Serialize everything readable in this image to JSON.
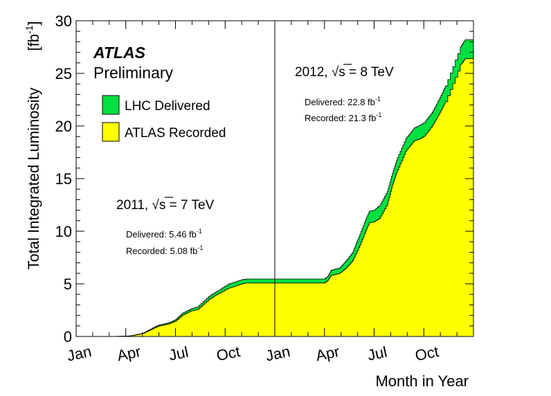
{
  "chart_data": {
    "type": "area",
    "xlabel": "Month in Year",
    "ylabel": "Total Integrated Luminosity",
    "ylabel_unit": "[fb",
    "ylabel_unit_sup": "-1",
    "ylabel_unit_close": "]",
    "ylim": [
      0,
      30
    ],
    "xlim": [
      0,
      24
    ],
    "y_ticks": [
      0,
      5,
      10,
      15,
      20,
      25,
      30
    ],
    "x_tick_labels": [
      {
        "label": "Jan",
        "x": 0
      },
      {
        "label": "Apr",
        "x": 3
      },
      {
        "label": "Jul",
        "x": 6
      },
      {
        "label": "Oct",
        "x": 9
      },
      {
        "label": "Jan",
        "x": 12
      },
      {
        "label": "Apr",
        "x": 15
      },
      {
        "label": "Jul",
        "x": 18
      },
      {
        "label": "Oct",
        "x": 21
      }
    ],
    "x_unit": "months since Jan 2011",
    "divider_x": 12,
    "experiment": "ATLAS",
    "status": "Preliminary",
    "legend": [
      {
        "label": "LHC Delivered",
        "color": "#00e040"
      },
      {
        "label": "ATLAS Recorded",
        "color": "#ffff00"
      }
    ],
    "annotations": {
      "y2011": {
        "prefix": "2011, ",
        "sqrt": "√",
        "s": "s",
        "suffix": " = 7 TeV",
        "delivered": "Delivered: 5.46 fb",
        "recorded": "Recorded: 5.08 fb",
        "sup": "-1"
      },
      "y2012": {
        "prefix": "2012, ",
        "sqrt": "√",
        "s": "s",
        "suffix": " = 8 TeV",
        "delivered": "Delivered: 22.8 fb",
        "recorded": "Recorded: 21.3 fb",
        "sup": "-1"
      }
    },
    "series": [
      {
        "name": "LHC Delivered",
        "color": "#00e040",
        "x": [
          0,
          1.5,
          2.5,
          3.2,
          4.0,
          4.6,
          5.0,
          5.6,
          6.0,
          6.4,
          6.9,
          7.3,
          8.0,
          8.5,
          9.2,
          10.0,
          10.3,
          12.0,
          15.0,
          15.2,
          15.4,
          15.9,
          16.3,
          16.7,
          17.0,
          17.4,
          17.7,
          18.0,
          18.3,
          18.8,
          19.1,
          19.4,
          19.9,
          20.4,
          20.8,
          21.0,
          21.5,
          21.9,
          22.3,
          23.2,
          23.5,
          24.0
        ],
        "values": [
          0,
          0,
          0.01,
          0.05,
          0.3,
          0.8,
          1.1,
          1.3,
          1.6,
          2.2,
          2.6,
          2.8,
          3.8,
          4.3,
          5.0,
          5.4,
          5.46,
          5.46,
          5.46,
          5.7,
          6.3,
          6.5,
          7.2,
          8.0,
          9.2,
          10.8,
          11.9,
          12.0,
          12.4,
          13.8,
          15.5,
          17.0,
          18.8,
          19.8,
          20.1,
          20.3,
          21.3,
          22.5,
          23.8,
          27.5,
          28.2,
          28.2
        ]
      },
      {
        "name": "ATLAS Recorded",
        "color": "#ffff00",
        "x": [
          0,
          1.5,
          2.5,
          3.2,
          4.0,
          4.6,
          5.0,
          5.6,
          6.0,
          6.4,
          6.9,
          7.3,
          8.0,
          8.5,
          9.2,
          10.0,
          10.3,
          12.0,
          15.0,
          15.2,
          15.4,
          15.9,
          16.3,
          16.7,
          17.0,
          17.4,
          17.7,
          18.0,
          18.3,
          18.8,
          19.1,
          19.4,
          19.9,
          20.4,
          20.8,
          21.0,
          21.5,
          21.9,
          22.3,
          23.2,
          23.5,
          24.0
        ],
        "values": [
          0,
          0,
          0.01,
          0.04,
          0.27,
          0.72,
          1.0,
          1.2,
          1.45,
          2.0,
          2.4,
          2.55,
          3.5,
          4.0,
          4.6,
          5.0,
          5.08,
          5.08,
          5.08,
          5.3,
          5.8,
          6.0,
          6.5,
          7.2,
          8.2,
          9.7,
          10.8,
          10.9,
          11.2,
          12.6,
          14.4,
          15.8,
          17.6,
          18.6,
          18.8,
          19.0,
          20.0,
          21.1,
          22.3,
          25.8,
          26.4,
          26.4
        ]
      }
    ]
  }
}
